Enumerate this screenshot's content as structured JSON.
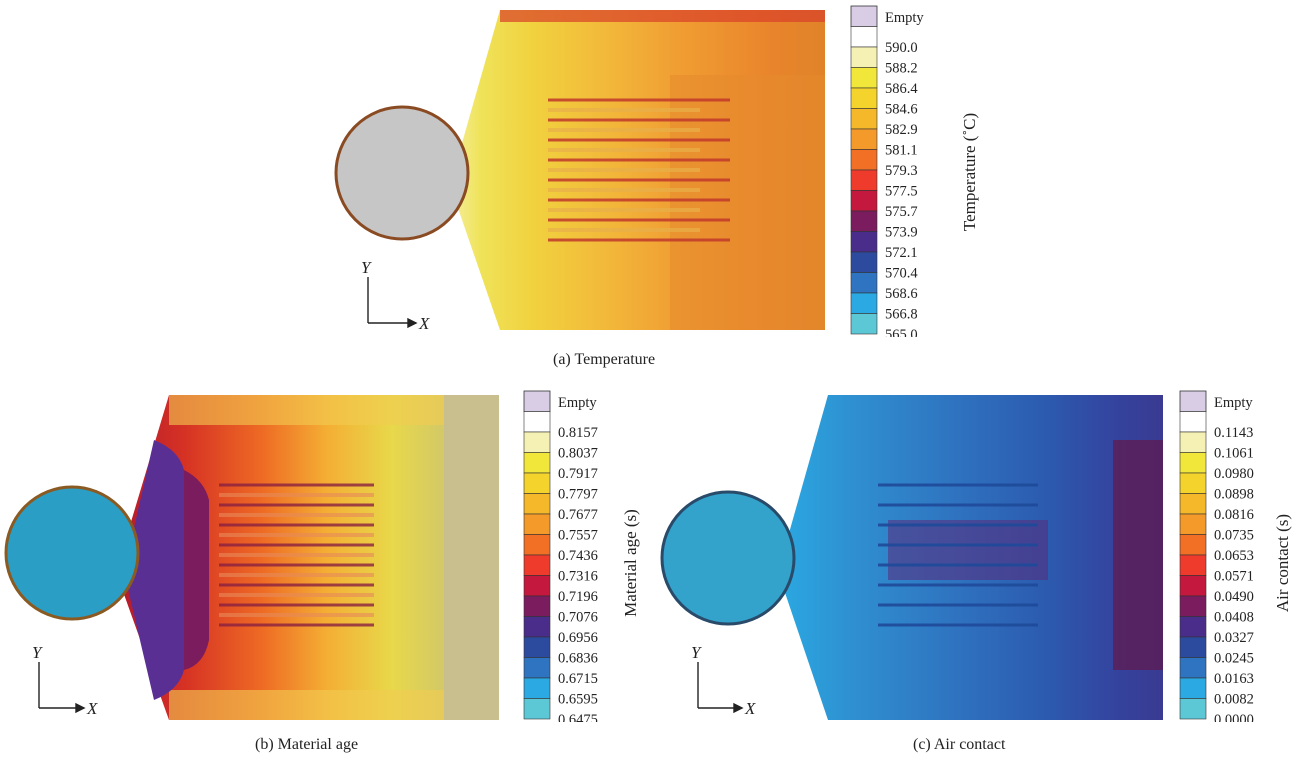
{
  "panels": {
    "a": {
      "caption": "(a)  Temperature",
      "colorbar_title": "Temperature (˚C)",
      "empty_label": "Empty",
      "ticks": [
        "590.0",
        "588.2",
        "586.4",
        "584.6",
        "582.9",
        "581.1",
        "579.3",
        "577.5",
        "575.7",
        "573.9",
        "572.1",
        "570.4",
        "568.6",
        "566.8",
        "565.0"
      ],
      "axis_x": "X",
      "axis_y": "Y"
    },
    "b": {
      "caption": "(b)  Material age",
      "colorbar_title": "Material age (s)",
      "empty_label": "Empty",
      "ticks": [
        "0.8157",
        "0.8037",
        "0.7917",
        "0.7797",
        "0.7677",
        "0.7557",
        "0.7436",
        "0.7316",
        "0.7196",
        "0.7076",
        "0.6956",
        "0.6836",
        "0.6715",
        "0.6595",
        "0.6475"
      ],
      "axis_x": "X",
      "axis_y": "Y"
    },
    "c": {
      "caption": "(c)  Air contact",
      "colorbar_title": "Air contact (s)",
      "empty_label": "Empty",
      "ticks": [
        "0.1143",
        "0.1061",
        "0.0980",
        "0.0898",
        "0.0816",
        "0.0735",
        "0.0653",
        "0.0571",
        "0.0490",
        "0.0408",
        "0.0327",
        "0.0245",
        "0.0163",
        "0.0082",
        "0.0000"
      ],
      "axis_x": "X",
      "axis_y": "Y"
    }
  },
  "colors": {
    "empty": "#d9cde6",
    "scale": [
      "#ffffff",
      "#f5f0b4",
      "#f1e63a",
      "#f3d32c",
      "#f4b82a",
      "#f49a2a",
      "#f26f26",
      "#ee3b2c",
      "#c4183e",
      "#7a1c5e",
      "#4a2d8a",
      "#2c4a9e",
      "#2f74c0",
      "#2aa9e2",
      "#5cc8d6"
    ]
  }
}
